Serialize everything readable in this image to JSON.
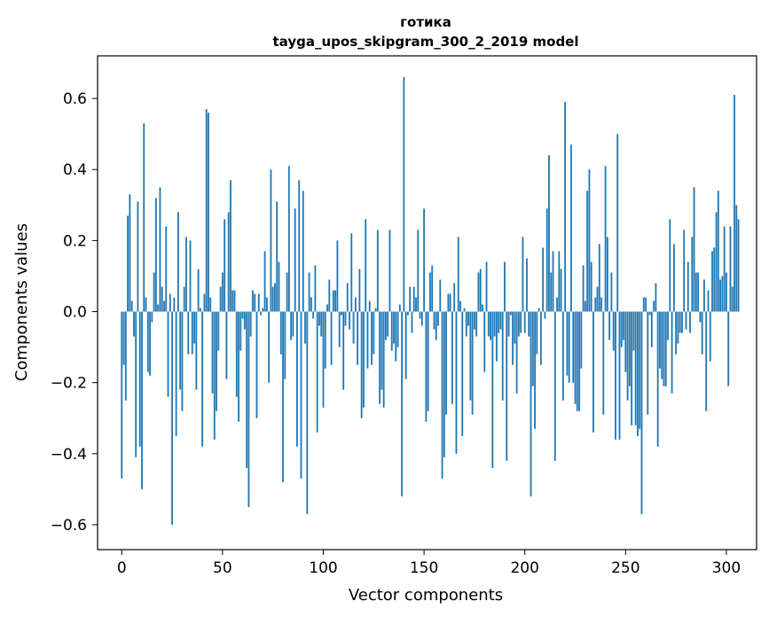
{
  "chart_data": {
    "type": "bar",
    "title_line1": "готика",
    "title_line2": "tayga_upos_skipgram_300_2_2019 model",
    "xlabel": "Vector components",
    "ylabel": "Components values",
    "xlim": [
      -12,
      315
    ],
    "ylim": [
      -0.67,
      0.72
    ],
    "xticks": [
      0,
      50,
      100,
      150,
      200,
      250,
      300
    ],
    "xtick_labels": [
      "0",
      "50",
      "100",
      "150",
      "200",
      "250",
      "300"
    ],
    "yticks": [
      -0.6,
      -0.4,
      -0.2,
      0.0,
      0.2,
      0.4,
      0.6
    ],
    "ytick_labels": [
      "−0.6",
      "−0.4",
      "−0.2",
      "0.0",
      "0.2",
      "0.4",
      "0.6"
    ],
    "bar_color": "#1f77b4",
    "grid": false,
    "values": [
      -0.47,
      -0.15,
      -0.25,
      0.27,
      0.33,
      0.03,
      -0.07,
      -0.41,
      0.31,
      -0.38,
      -0.5,
      0.53,
      0.04,
      -0.17,
      -0.18,
      -0.03,
      0.11,
      0.32,
      0.02,
      0.35,
      0.07,
      0.03,
      0.24,
      -0.24,
      0.05,
      -0.6,
      0.04,
      -0.35,
      0.28,
      -0.22,
      -0.28,
      0.07,
      0.21,
      -0.12,
      0.2,
      -0.12,
      -0.09,
      -0.22,
      0.12,
      0.01,
      -0.38,
      0.05,
      0.57,
      0.56,
      0.04,
      -0.23,
      -0.36,
      -0.28,
      -0.11,
      0.07,
      0.11,
      0.26,
      -0.19,
      0.28,
      0.37,
      0.06,
      0.06,
      -0.24,
      -0.31,
      -0.11,
      -0.02,
      -0.05,
      -0.44,
      -0.55,
      -0.07,
      0.06,
      0.05,
      -0.3,
      0.05,
      -0.01,
      0.01,
      0.17,
      0.04,
      -0.2,
      0.4,
      0.07,
      0.08,
      0.31,
      0.14,
      -0.12,
      -0.48,
      -0.19,
      0.11,
      0.41,
      -0.08,
      -0.07,
      0.29,
      -0.38,
      0.37,
      -0.47,
      0.34,
      -0.09,
      -0.57,
      0.11,
      0.04,
      -0.02,
      0.13,
      -0.34,
      -0.04,
      -0.07,
      -0.27,
      -0.16,
      0.02,
      0.09,
      -0.15,
      0.06,
      0.06,
      0.2,
      -0.1,
      -0.01,
      -0.22,
      -0.04,
      0.08,
      -0.05,
      0.22,
      -0.09,
      0.04,
      -0.15,
      0.12,
      -0.3,
      -0.27,
      0.26,
      -0.16,
      0.03,
      -0.15,
      -0.12,
      0.01,
      0.23,
      -0.26,
      -0.22,
      -0.27,
      -0.08,
      -0.07,
      0.23,
      -0.11,
      -0.09,
      -0.14,
      -0.1,
      0.02,
      -0.52,
      0.66,
      -0.19,
      -0.01,
      0.07,
      -0.06,
      0.07,
      0.04,
      0.23,
      -0.02,
      -0.04,
      0.29,
      -0.31,
      -0.28,
      0.11,
      0.13,
      -0.05,
      -0.08,
      -0.04,
      0.09,
      -0.47,
      -0.41,
      -0.29,
      0.05,
      0.05,
      -0.26,
      0.08,
      -0.4,
      0.21,
      0.03,
      -0.35,
      0.01,
      -0.07,
      -0.04,
      -0.25,
      -0.29,
      -0.05,
      -0.07,
      0.11,
      0.12,
      0.02,
      -0.17,
      0.14,
      -0.07,
      -0.08,
      -0.44,
      -0.07,
      -0.14,
      -0.06,
      -0.05,
      -0.25,
      0.14,
      -0.42,
      -0.07,
      -0.01,
      -0.15,
      -0.09,
      -0.23,
      -0.07,
      -0.06,
      0.21,
      -0.06,
      0.15,
      -0.07,
      -0.52,
      -0.21,
      -0.33,
      -0.12,
      0.01,
      -0.15,
      0.18,
      -0.02,
      0.29,
      0.44,
      0.11,
      0.17,
      -0.42,
      0.04,
      0.17,
      0.12,
      -0.25,
      0.59,
      -0.18,
      -0.2,
      0.47,
      -0.2,
      -0.26,
      -0.28,
      -0.28,
      -0.16,
      0.13,
      0.03,
      0.34,
      0.4,
      0.14,
      -0.34,
      0.04,
      0.07,
      0.19,
      0.04,
      -0.29,
      0.41,
      0.21,
      -0.08,
      0.11,
      -0.11,
      -0.36,
      0.5,
      -0.36,
      -0.1,
      -0.08,
      -0.17,
      -0.25,
      -0.21,
      -0.32,
      -0.11,
      -0.32,
      -0.35,
      -0.33,
      -0.57,
      0.04,
      0.04,
      -0.29,
      -0.01,
      -0.1,
      0.03,
      0.08,
      -0.38,
      -0.16,
      -0.19,
      -0.21,
      -0.21,
      -0.08,
      0.26,
      -0.23,
      0.19,
      -0.12,
      -0.09,
      -0.06,
      -0.06,
      0.23,
      -0.05,
      0.14,
      -0.06,
      0.21,
      0.35,
      0.11,
      0.11,
      -0.03,
      -0.12,
      0.09,
      -0.28,
      0.06,
      -0.14,
      0.17,
      0.18,
      0.28,
      0.34,
      0.09,
      0.1,
      0.24,
      0.11,
      -0.21,
      0.24,
      0.07,
      0.61,
      0.3,
      0.26
    ]
  }
}
